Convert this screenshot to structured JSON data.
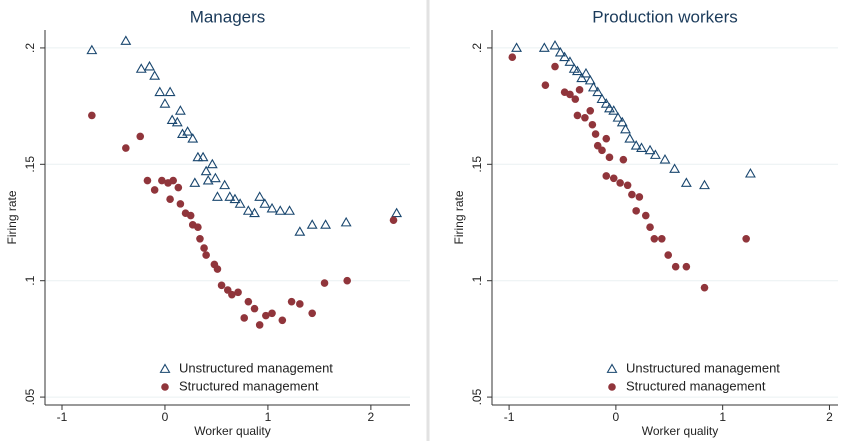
{
  "chart_data": [
    {
      "type": "scatter",
      "title": "Managers",
      "xlabel": "Worker quality",
      "ylabel": "Firing rate",
      "xlim": [
        -1.165,
        2.38
      ],
      "ylim": [
        0.0466,
        0.2077
      ],
      "xticks": [
        -1,
        0,
        1,
        2
      ],
      "yticks": [
        {
          "value": 0.05,
          "label": ".05"
        },
        {
          "value": 0.1,
          "label": ".1"
        },
        {
          "value": 0.15,
          "label": ".15"
        },
        {
          "value": 0.2,
          "label": ".2"
        }
      ],
      "grid": true,
      "legend": "bottom",
      "series": [
        {
          "name": "Unstructured management",
          "color": "#1a476f",
          "marker": "triangle",
          "x": [
            -0.71,
            -0.38,
            -0.23,
            -0.15,
            -0.1,
            -0.05,
            0.05,
            0,
            0.07,
            0.12,
            0.15,
            0.17,
            0.22,
            0.27,
            0.32,
            0.37,
            0.4,
            0.46,
            0.42,
            0.29,
            0.49,
            0.51,
            0.58,
            0.63,
            0.68,
            0.73,
            0.81,
            0.87,
            0.92,
            0.97,
            1.04,
            1.12,
            1.21,
            1.31,
            1.43,
            1.56,
            1.76,
            2.25
          ],
          "values": [
            0.199,
            0.203,
            0.191,
            0.192,
            0.188,
            0.181,
            0.181,
            0.176,
            0.169,
            0.168,
            0.173,
            0.163,
            0.164,
            0.161,
            0.153,
            0.153,
            0.147,
            0.15,
            0.143,
            0.142,
            0.144,
            0.136,
            0.141,
            0.136,
            0.135,
            0.133,
            0.13,
            0.129,
            0.136,
            0.133,
            0.131,
            0.13,
            0.13,
            0.121,
            0.124,
            0.124,
            0.125,
            0.129
          ]
        },
        {
          "name": "Structured management",
          "color": "#90353b",
          "marker": "circle",
          "x": [
            -0.71,
            -0.38,
            -0.24,
            -0.17,
            -0.1,
            -0.03,
            0.03,
            0.08,
            0.13,
            0.05,
            0.15,
            0.2,
            0.25,
            0.27,
            0.32,
            0.34,
            0.38,
            0.4,
            0.48,
            0.51,
            0.55,
            0.61,
            0.65,
            0.71,
            0.77,
            0.81,
            0.87,
            0.92,
            0.98,
            1.04,
            1.14,
            1.23,
            1.31,
            1.43,
            1.55,
            1.77,
            2.22
          ],
          "values": [
            0.171,
            0.157,
            0.162,
            0.143,
            0.139,
            0.143,
            0.142,
            0.143,
            0.14,
            0.135,
            0.133,
            0.129,
            0.128,
            0.124,
            0.123,
            0.118,
            0.114,
            0.111,
            0.107,
            0.105,
            0.098,
            0.096,
            0.094,
            0.095,
            0.084,
            0.091,
            0.088,
            0.081,
            0.085,
            0.086,
            0.083,
            0.091,
            0.09,
            0.086,
            0.099,
            0.1,
            0.126
          ]
        }
      ]
    },
    {
      "type": "scatter",
      "title": "Production workers",
      "xlabel": "Worker quality",
      "ylabel": "Firing rate",
      "xlim": [
        -1.16,
        2.08
      ],
      "ylim": [
        0.0466,
        0.2077
      ],
      "xticks": [
        -1,
        0,
        1,
        2
      ],
      "yticks": [
        {
          "value": 0.05,
          "label": ".05"
        },
        {
          "value": 0.1,
          "label": ".1"
        },
        {
          "value": 0.15,
          "label": ".15"
        },
        {
          "value": 0.2,
          "label": ".2"
        }
      ],
      "grid": true,
      "legend": "bottom",
      "series": [
        {
          "name": "Unstructured management",
          "color": "#1a476f",
          "marker": "triangle",
          "x": [
            -0.93,
            -0.67,
            -0.57,
            -0.52,
            -0.48,
            -0.43,
            -0.39,
            -0.36,
            -0.32,
            -0.28,
            -0.24,
            -0.21,
            -0.17,
            -0.13,
            -0.09,
            -0.06,
            -0.02,
            0.02,
            0.06,
            0.09,
            0.13,
            0.19,
            0.24,
            0.32,
            0.37,
            0.46,
            0.55,
            0.66,
            0.83,
            1.26
          ],
          "values": [
            0.2,
            0.2,
            0.201,
            0.198,
            0.196,
            0.194,
            0.191,
            0.19,
            0.187,
            0.189,
            0.186,
            0.183,
            0.181,
            0.178,
            0.176,
            0.174,
            0.173,
            0.17,
            0.168,
            0.165,
            0.161,
            0.158,
            0.157,
            0.156,
            0.154,
            0.152,
            0.148,
            0.142,
            0.141,
            0.146
          ]
        },
        {
          "name": "Structured management",
          "color": "#90353b",
          "marker": "circle",
          "x": [
            -0.97,
            -0.66,
            -0.57,
            -0.48,
            -0.43,
            -0.38,
            -0.34,
            -0.36,
            -0.29,
            -0.24,
            -0.22,
            -0.19,
            -0.17,
            -0.13,
            -0.09,
            -0.06,
            -0.09,
            -0.02,
            0.04,
            0.07,
            0.11,
            0.15,
            0.19,
            0.22,
            0.28,
            0.32,
            0.36,
            0.43,
            0.49,
            0.56,
            0.66,
            0.83,
            1.22
          ],
          "values": [
            0.196,
            0.184,
            0.192,
            0.181,
            0.18,
            0.178,
            0.182,
            0.171,
            0.17,
            0.173,
            0.167,
            0.163,
            0.158,
            0.156,
            0.161,
            0.153,
            0.145,
            0.144,
            0.142,
            0.152,
            0.141,
            0.137,
            0.13,
            0.136,
            0.128,
            0.123,
            0.118,
            0.118,
            0.111,
            0.106,
            0.106,
            0.097,
            0.118
          ]
        }
      ]
    }
  ]
}
